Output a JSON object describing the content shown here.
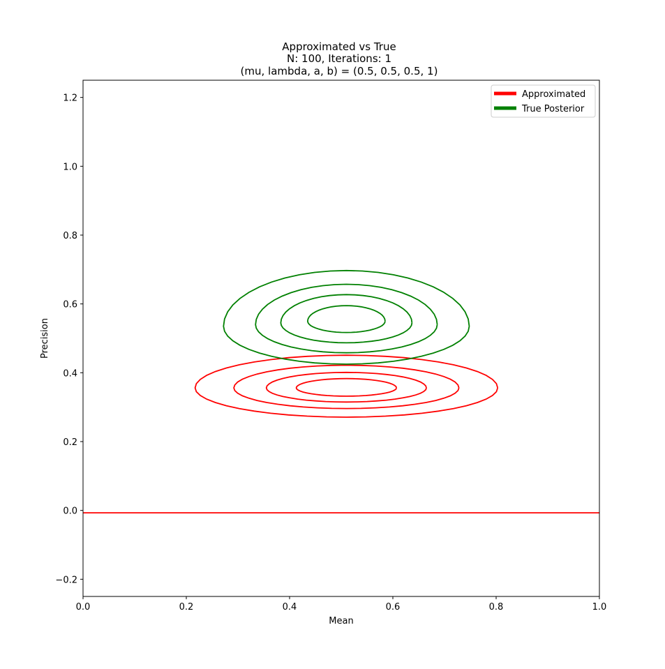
{
  "chart_data": {
    "type": "contour",
    "title": [
      "Approximated vs True",
      "N: 100, Iterations: 1",
      "(mu, lambda, a, b) = (0.5, 0.5, 0.5, 1)"
    ],
    "xlabel": "Mean",
    "ylabel": "Precision",
    "xlim": [
      0.0,
      1.0
    ],
    "ylim": [
      -0.25,
      1.25
    ],
    "xticks": [
      "0.0",
      "0.2",
      "0.4",
      "0.6",
      "0.8",
      "1.0"
    ],
    "yticks": [
      "−0.2",
      "0.0",
      "0.2",
      "0.4",
      "0.6",
      "0.8",
      "1.0",
      "1.2"
    ],
    "grid": false,
    "legend_position": "top-right",
    "series": [
      {
        "name": "Approximated",
        "color": "#ff0000",
        "contours": [
          {
            "cx": 0.51,
            "cy": 0.356,
            "rx": 0.293,
            "ry_top": 0.095,
            "ry_bottom": 0.085
          },
          {
            "cx": 0.51,
            "cy": 0.356,
            "rx": 0.218,
            "ry_top": 0.066,
            "ry_bottom": 0.06
          },
          {
            "cx": 0.51,
            "cy": 0.356,
            "rx": 0.155,
            "ry_top": 0.045,
            "ry_bottom": 0.041
          },
          {
            "cx": 0.51,
            "cy": 0.356,
            "rx": 0.097,
            "ry_top": 0.027,
            "ry_bottom": 0.024
          }
        ],
        "baseline_y": -0.007
      },
      {
        "name": "True Posterior",
        "color": "#008000",
        "contours": [
          {
            "cx": 0.51,
            "cy": 0.535,
            "rx": 0.238,
            "ry_top": 0.162,
            "ry_bottom": 0.11
          },
          {
            "cx": 0.51,
            "cy": 0.54,
            "rx": 0.176,
            "ry_top": 0.117,
            "ry_bottom": 0.082
          },
          {
            "cx": 0.51,
            "cy": 0.545,
            "rx": 0.127,
            "ry_top": 0.082,
            "ry_bottom": 0.058
          },
          {
            "cx": 0.51,
            "cy": 0.55,
            "rx": 0.075,
            "ry_top": 0.045,
            "ry_bottom": 0.033
          }
        ]
      }
    ]
  }
}
